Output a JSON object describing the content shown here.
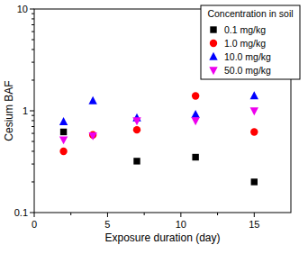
{
  "chart_data": {
    "type": "scatter",
    "x_label": "Exposure duration (day)",
    "y_label": "Cesium BAF",
    "log": "y",
    "xlim": [
      0,
      17.5
    ],
    "xticks": [
      0,
      5,
      10,
      15
    ],
    "ylim": [
      0.1,
      10
    ],
    "yticks": [
      0.1,
      1,
      10
    ],
    "legend": "top-right",
    "legend_title": "Concentration in soil",
    "series": [
      {
        "name": "0.1 mg/kg",
        "color": "#000000",
        "marker": "square",
        "x": [
          2,
          7,
          11,
          15
        ],
        "values": [
          0.62,
          0.32,
          0.35,
          0.2
        ]
      },
      {
        "name": "1.0 mg/kg",
        "color": "#ff0000",
        "marker": "circle",
        "x": [
          2,
          4,
          7,
          11,
          15
        ],
        "values": [
          0.4,
          0.58,
          0.65,
          1.4,
          0.62
        ]
      },
      {
        "name": "10.0 mg/kg",
        "color": "#0000ff",
        "marker": "triangle-up",
        "x": [
          2,
          4,
          7,
          11,
          15
        ],
        "values": [
          0.78,
          1.25,
          0.85,
          0.92,
          1.4
        ]
      },
      {
        "name": "50.0 mg/kg",
        "color": "#ee00ee",
        "marker": "triangle-down",
        "x": [
          2,
          4,
          7,
          11,
          15
        ],
        "values": [
          0.52,
          0.57,
          0.8,
          0.8,
          1.0
        ]
      }
    ]
  }
}
